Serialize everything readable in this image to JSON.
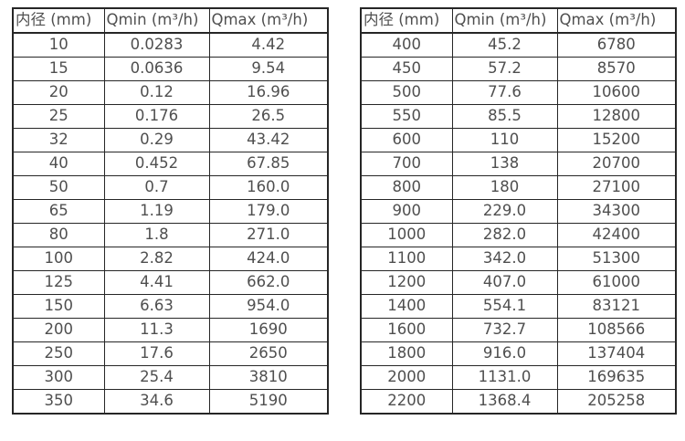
{
  "colors": {
    "background": "#ffffff",
    "border": "#262626",
    "text": "#4f4f4f"
  },
  "tables": [
    {
      "name": "small-diameter-specs",
      "headers": [
        "内径 (mm)",
        "Qmin (m³/h)",
        "Qmax (m³/h)"
      ],
      "rows": [
        [
          "10",
          "0.0283",
          "4.42"
        ],
        [
          "15",
          "0.0636",
          "9.54"
        ],
        [
          "20",
          "0.12",
          "16.96"
        ],
        [
          "25",
          "0.176",
          "26.5"
        ],
        [
          "32",
          "0.29",
          "43.42"
        ],
        [
          "40",
          "0.452",
          "67.85"
        ],
        [
          "50",
          "0.7",
          "160.0"
        ],
        [
          "65",
          "1.19",
          "179.0"
        ],
        [
          "80",
          "1.8",
          "271.0"
        ],
        [
          "100",
          "2.82",
          "424.0"
        ],
        [
          "125",
          "4.41",
          "662.0"
        ],
        [
          "150",
          "6.63",
          "954.0"
        ],
        [
          "200",
          "11.3",
          "1690"
        ],
        [
          "250",
          "17.6",
          "2650"
        ],
        [
          "300",
          "25.4",
          "3810"
        ],
        [
          "350",
          "34.6",
          "5190"
        ]
      ]
    },
    {
      "name": "large-diameter-specs",
      "headers": [
        "内径 (mm)",
        "Qmin (m³/h)",
        "Qmax (m³/h)"
      ],
      "rows": [
        [
          "400",
          "45.2",
          "6780"
        ],
        [
          "450",
          "57.2",
          "8570"
        ],
        [
          "500",
          "77.6",
          "10600"
        ],
        [
          "550",
          "85.5",
          "12800"
        ],
        [
          "600",
          "110",
          "15200"
        ],
        [
          "700",
          "138",
          "20700"
        ],
        [
          "800",
          "180",
          "27100"
        ],
        [
          "900",
          "229.0",
          "34300"
        ],
        [
          "1000",
          "282.0",
          "42400"
        ],
        [
          "1100",
          "342.0",
          "51300"
        ],
        [
          "1200",
          "407.0",
          "61000"
        ],
        [
          "1400",
          "554.1",
          "83121"
        ],
        [
          "1600",
          "732.7",
          "108566"
        ],
        [
          "1800",
          "916.0",
          "137404"
        ],
        [
          "2000",
          "1131.0",
          "169635"
        ],
        [
          "2200",
          "1368.4",
          "205258"
        ]
      ]
    }
  ],
  "cell_names": [
    "diameter-cell",
    "qmin-cell",
    "qmax-cell"
  ]
}
